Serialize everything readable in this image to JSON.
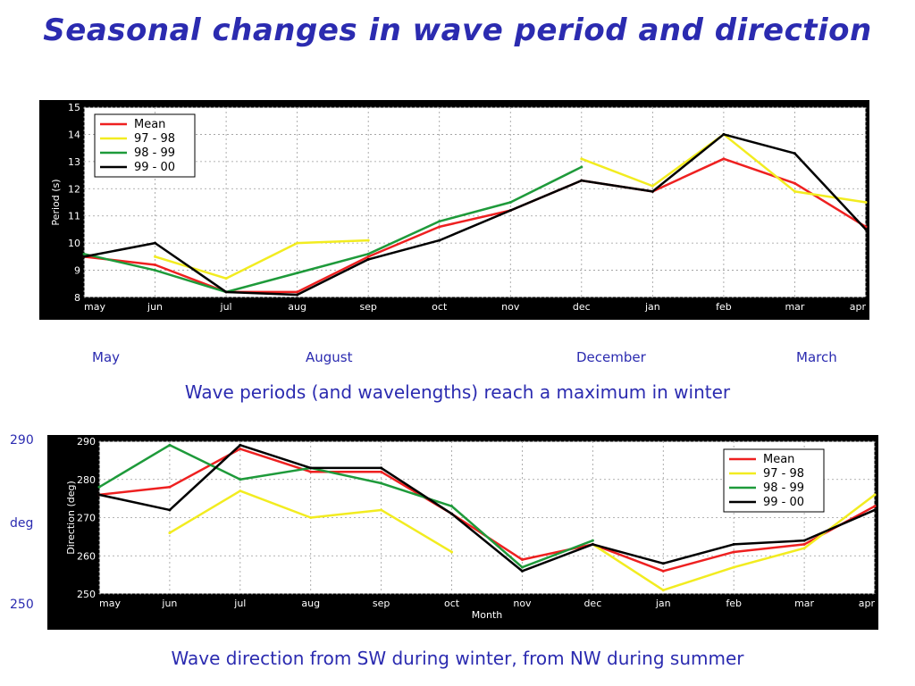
{
  "slide": {
    "title": "Seasonal changes in wave period and direction",
    "month_labels": [
      "May",
      "August",
      "December",
      "March"
    ],
    "caption_top": "Wave periods (and wavelengths) reach a maximum in winter",
    "caption_bottom": "Wave direction from SW during winter, from NW during summer",
    "side_labels": {
      "top": "290",
      "middle": "deg",
      "bottom": "250"
    }
  },
  "colors": {
    "mean": "#ee2020",
    "97-98": "#f2ec20",
    "98-99": "#1e9a3a",
    "99-00": "#000000"
  },
  "chart_data": [
    {
      "type": "line",
      "ylabel": "Period (s)",
      "xlabel": "",
      "ylim": [
        8,
        15
      ],
      "yticks": [
        "8",
        "9",
        "10",
        "11",
        "12",
        "13",
        "14",
        "15"
      ],
      "categories": [
        "may",
        "jun",
        "jul",
        "aug",
        "sep",
        "oct",
        "nov",
        "dec",
        "jan",
        "feb",
        "mar",
        "apr"
      ],
      "legend": "top-left",
      "grid": true,
      "series": [
        {
          "name": "Mean",
          "color": "mean",
          "values": [
            9.5,
            9.2,
            8.2,
            8.2,
            9.5,
            10.6,
            11.2,
            12.3,
            11.9,
            13.1,
            12.2,
            10.6
          ]
        },
        {
          "name": "97 - 98",
          "color": "97-98",
          "values": [
            null,
            9.5,
            8.7,
            10.0,
            10.1,
            null,
            null,
            13.1,
            12.1,
            14.0,
            11.9,
            11.5
          ]
        },
        {
          "name": "98 - 99",
          "color": "98-99",
          "values": [
            9.6,
            9.0,
            8.2,
            8.9,
            9.6,
            10.8,
            11.5,
            12.8,
            null,
            null,
            null,
            null
          ]
        },
        {
          "name": "99 - 00",
          "color": "99-00",
          "values": [
            9.5,
            10.0,
            8.2,
            8.1,
            9.4,
            10.1,
            11.2,
            12.3,
            11.9,
            14.0,
            13.3,
            10.5
          ]
        }
      ]
    },
    {
      "type": "line",
      "ylabel": "Direction (deg)",
      "xlabel": "Month",
      "ylim": [
        250,
        290
      ],
      "yticks": [
        "250",
        "260",
        "270",
        "280",
        "290"
      ],
      "categories": [
        "may",
        "jun",
        "jul",
        "aug",
        "sep",
        "oct",
        "nov",
        "dec",
        "jan",
        "feb",
        "mar",
        "apr"
      ],
      "legend": "top-right",
      "grid": true,
      "series": [
        {
          "name": "Mean",
          "color": "mean",
          "values": [
            276,
            278,
            288,
            282,
            282,
            271,
            259,
            263,
            256,
            261,
            263,
            273
          ]
        },
        {
          "name": "97 - 98",
          "color": "97-98",
          "values": [
            null,
            266,
            277,
            270,
            272,
            261,
            null,
            263,
            251,
            257,
            262,
            276
          ]
        },
        {
          "name": "98 - 99",
          "color": "98-99",
          "values": [
            278,
            289,
            280,
            283,
            279,
            273,
            257,
            264,
            null,
            null,
            null,
            null
          ]
        },
        {
          "name": "99 - 00",
          "color": "99-00",
          "values": [
            276,
            272,
            289,
            283,
            283,
            271,
            256,
            263,
            258,
            263,
            264,
            272
          ]
        }
      ]
    }
  ]
}
